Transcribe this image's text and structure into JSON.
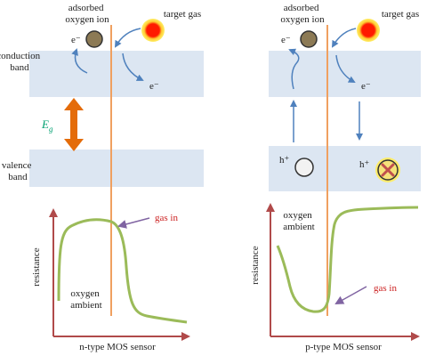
{
  "labels": {
    "conduction_band": [
      "conduction",
      "band"
    ],
    "valence_band": [
      "valence",
      "band"
    ],
    "eg_main": "E",
    "eg_sub": "g",
    "resistance": "resistance"
  },
  "left": {
    "adsorbed": [
      "adsorbed",
      "oxygen ion"
    ],
    "target_gas": "target gas",
    "electron_top": "e⁻",
    "electron_band": "e⁻",
    "gas_in": "gas in",
    "ambient": [
      "oxygen",
      "ambient"
    ],
    "caption": "n-type MOS sensor"
  },
  "right": {
    "adsorbed": [
      "adsorbed",
      "oxygen ion"
    ],
    "target_gas": "target gas",
    "electron_top": "e⁻",
    "electron_band": "e⁻",
    "hole_left": "h⁺",
    "hole_right": "h⁺",
    "ambient": [
      "oxygen",
      "ambient"
    ],
    "gas_in": "gas in",
    "caption": "p-type MOS sensor"
  },
  "colors": {
    "band_fill": "#dce6f2",
    "orange_line": "#f0a060",
    "axis_red": "#b04a4a",
    "curve_green": "#9bbb59",
    "blue_arrow": "#4f81bd",
    "oxygen_ball": "#8c7a55",
    "gas_ball": "#ff1a00",
    "gas_glow": "#ffee66",
    "eg_arrow": "#e46c0a",
    "gas_in_text": "#cc2222",
    "purple_arrow": "#8064a2",
    "eg_text": "#00a070",
    "hole_fill": "#f2f2f2",
    "cross": "#c0504d"
  }
}
